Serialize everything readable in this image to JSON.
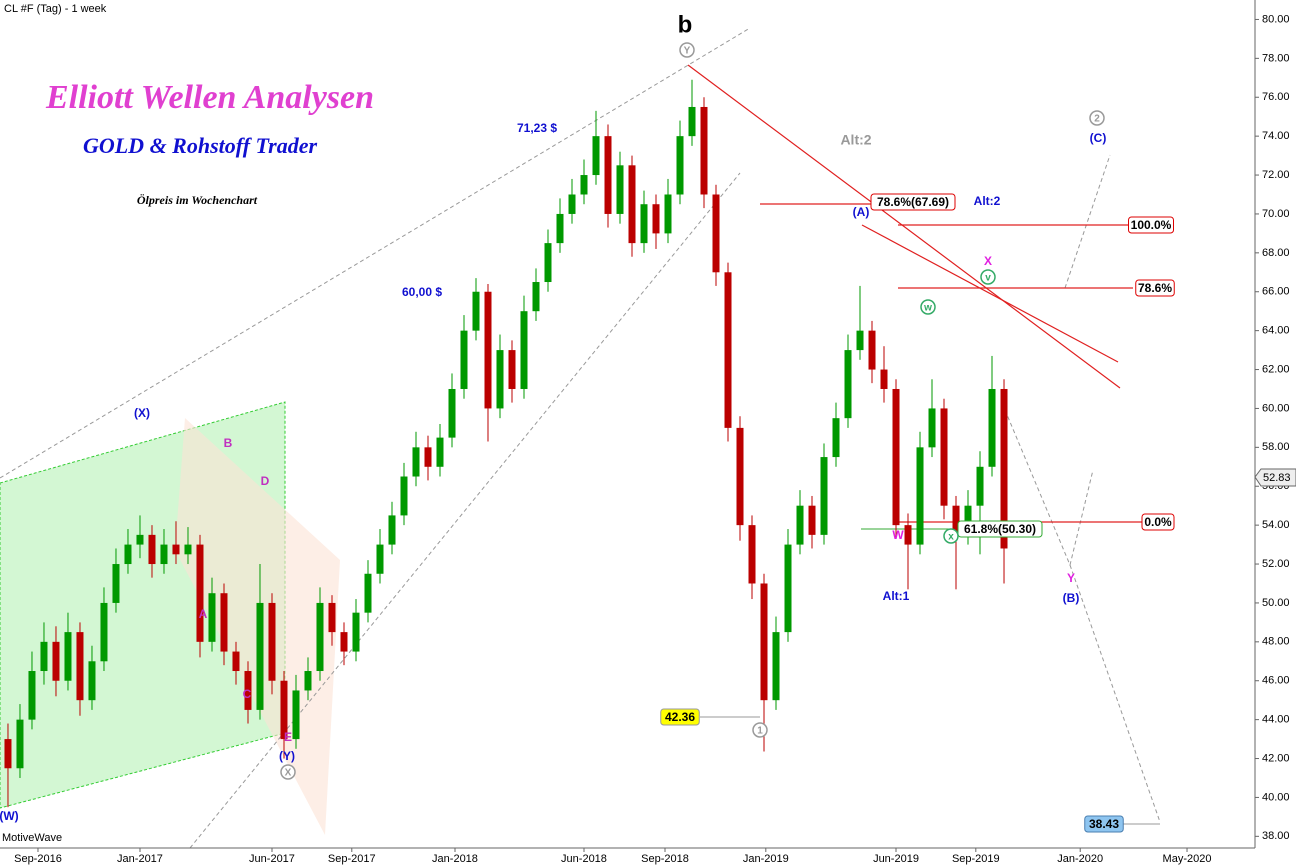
{
  "chart_data": {
    "type": "candlestick",
    "title": "CL #F (Tag) - 1 week",
    "headline": "Elliott Wellen Analysen",
    "subheadline": "GOLD & Rohstoff Trader",
    "caption": "Ölpreis im Wochenchart",
    "watermark": "MotiveWave",
    "last_price_label": "52.83",
    "up_color": "#009900",
    "down_color": "#bb0000",
    "xlim": [
      -6.33,
      202.83
    ],
    "xticks": [
      {
        "value": 0,
        "label": "Sep-2016"
      },
      {
        "value": 17,
        "label": "Jan-2017"
      },
      {
        "value": 39,
        "label": "Jun-2017"
      },
      {
        "value": 52.3,
        "label": "Sep-2017"
      },
      {
        "value": 69.5,
        "label": "Jan-2018"
      },
      {
        "value": 91,
        "label": "Jun-2018"
      },
      {
        "value": 104.5,
        "label": "Sep-2018"
      },
      {
        "value": 121.3,
        "label": "Jan-2019"
      },
      {
        "value": 143,
        "label": "Jun-2019"
      },
      {
        "value": 156.3,
        "label": "Sep-2019"
      },
      {
        "value": 173.7,
        "label": "Jan-2020"
      },
      {
        "value": 191.5,
        "label": "May-2020"
      }
    ],
    "ylim": [
      37.4,
      81.0
    ],
    "yticks": [
      {
        "value": 38,
        "label": "38.00"
      },
      {
        "value": 40,
        "label": "40.00"
      },
      {
        "value": 42,
        "label": "42.00"
      },
      {
        "value": 44,
        "label": "44.00"
      },
      {
        "value": 46,
        "label": "46.00"
      },
      {
        "value": 48,
        "label": "48.00"
      },
      {
        "value": 50,
        "label": "50.00"
      },
      {
        "value": 52,
        "label": "52.00"
      },
      {
        "value": 54,
        "label": "54.00"
      },
      {
        "value": 56,
        "label": "56.00"
      },
      {
        "value": 58,
        "label": "58.00"
      },
      {
        "value": 60,
        "label": "60.00"
      },
      {
        "value": 62,
        "label": "62.00"
      },
      {
        "value": 64,
        "label": "64.00"
      },
      {
        "value": 66,
        "label": "66.00"
      },
      {
        "value": 68,
        "label": "68.00"
      },
      {
        "value": 70,
        "label": "70.00"
      },
      {
        "value": 72,
        "label": "72.00"
      },
      {
        "value": 74,
        "label": "74.00"
      },
      {
        "value": 76,
        "label": "76.00"
      },
      {
        "value": 78,
        "label": "78.00"
      },
      {
        "value": 80,
        "label": "80.00"
      }
    ],
    "x": [
      -5,
      -3,
      -1,
      1,
      3,
      5,
      7,
      9,
      11,
      13,
      15,
      17,
      19,
      21,
      23,
      25,
      27,
      29,
      31,
      33,
      35,
      37,
      39,
      41,
      43,
      45,
      47,
      49,
      51,
      53,
      55,
      57,
      59,
      61,
      63,
      65,
      67,
      69,
      71,
      73,
      75,
      77,
      79,
      81,
      83,
      85,
      87,
      89,
      91,
      93,
      95,
      97,
      99,
      101,
      103,
      105,
      107,
      109,
      111,
      113,
      115,
      117,
      119,
      121,
      123,
      125,
      127,
      129,
      131,
      133,
      135,
      137,
      139,
      141,
      143,
      145,
      147,
      149,
      151,
      153,
      155,
      157,
      159,
      161
    ],
    "ohlc": [
      [
        43,
        43.8,
        39.5,
        41.5
      ],
      [
        41.5,
        44.8,
        41,
        44
      ],
      [
        44,
        47.5,
        43.5,
        46.5
      ],
      [
        46.5,
        49,
        45.8,
        48
      ],
      [
        48,
        48.8,
        45.2,
        46
      ],
      [
        46,
        49.5,
        45.5,
        48.5
      ],
      [
        48.5,
        49,
        44.2,
        45
      ],
      [
        45,
        47.8,
        44.5,
        47
      ],
      [
        47,
        50.8,
        46.5,
        50
      ],
      [
        50,
        52.8,
        49.5,
        52
      ],
      [
        52,
        53.8,
        51.5,
        53
      ],
      [
        53,
        54.5,
        52.3,
        53.5
      ],
      [
        53.5,
        54,
        51.3,
        52
      ],
      [
        52,
        53.8,
        51.5,
        53
      ],
      [
        53,
        54.2,
        52,
        52.5
      ],
      [
        52.5,
        53.9,
        52,
        53
      ],
      [
        53,
        53.5,
        47.2,
        48
      ],
      [
        48,
        51.3,
        47.5,
        50.5
      ],
      [
        50.5,
        51,
        46.8,
        47.5
      ],
      [
        47.5,
        48,
        45.8,
        46.5
      ],
      [
        46.5,
        47,
        43.8,
        44.5
      ],
      [
        44.5,
        52,
        44,
        50
      ],
      [
        50,
        50.5,
        45.3,
        46
      ],
      [
        46,
        46.5,
        42,
        43
      ],
      [
        43,
        46.3,
        42.5,
        45.5
      ],
      [
        45.5,
        47.2,
        45,
        46.5
      ],
      [
        46.5,
        50.8,
        46,
        50
      ],
      [
        50,
        50.4,
        47.8,
        48.5
      ],
      [
        48.5,
        49,
        46.8,
        47.5
      ],
      [
        47.5,
        50.2,
        47,
        49.5
      ],
      [
        49.5,
        52.2,
        49,
        51.5
      ],
      [
        51.5,
        53.8,
        51,
        53
      ],
      [
        53,
        55.2,
        52.5,
        54.5
      ],
      [
        54.5,
        57.2,
        54,
        56.5
      ],
      [
        56.5,
        58.8,
        56,
        58
      ],
      [
        58,
        58.6,
        56.3,
        57
      ],
      [
        57,
        59.2,
        56.5,
        58.5
      ],
      [
        58.5,
        61.8,
        58,
        61
      ],
      [
        61,
        64.8,
        60.5,
        64
      ],
      [
        64,
        66.7,
        63.5,
        66
      ],
      [
        66,
        66.4,
        58.3,
        60
      ],
      [
        60,
        63.8,
        59.5,
        63
      ],
      [
        63,
        63.5,
        60.3,
        61
      ],
      [
        61,
        65.8,
        60.5,
        65
      ],
      [
        65,
        67.2,
        64.5,
        66.5
      ],
      [
        66.5,
        69.2,
        66,
        68.5
      ],
      [
        68.5,
        70.8,
        68,
        70
      ],
      [
        70,
        71.8,
        69.5,
        71
      ],
      [
        71,
        72.8,
        70.5,
        72
      ],
      [
        72,
        75.3,
        71.5,
        74
      ],
      [
        74,
        74.6,
        69.3,
        70
      ],
      [
        70,
        73.2,
        69.5,
        72.5
      ],
      [
        72.5,
        73,
        67.8,
        68.5
      ],
      [
        68.5,
        71.2,
        68,
        70.5
      ],
      [
        70.5,
        71,
        68.2,
        69
      ],
      [
        69,
        71.8,
        68.5,
        71
      ],
      [
        71,
        74.8,
        70.5,
        74
      ],
      [
        74,
        76.9,
        73.5,
        75.5
      ],
      [
        75.5,
        76,
        70.3,
        71
      ],
      [
        71,
        71.5,
        66.3,
        67
      ],
      [
        67,
        67.5,
        58.3,
        59
      ],
      [
        59,
        59.6,
        53.2,
        54
      ],
      [
        54,
        54.5,
        50.2,
        51
      ],
      [
        51,
        51.5,
        42.36,
        45
      ],
      [
        45,
        49.3,
        44.5,
        48.5
      ],
      [
        48.5,
        53.8,
        48,
        53
      ],
      [
        53,
        55.8,
        52.5,
        55
      ],
      [
        55,
        55.5,
        52.8,
        53.5
      ],
      [
        53.5,
        58.2,
        53,
        57.5
      ],
      [
        57.5,
        60.3,
        57,
        59.5
      ],
      [
        59.5,
        63.8,
        59,
        63
      ],
      [
        63,
        66.3,
        62.5,
        64
      ],
      [
        64,
        64.5,
        61.3,
        62
      ],
      [
        62,
        63.2,
        60.3,
        61
      ],
      [
        61,
        61.5,
        53.3,
        54
      ],
      [
        54,
        54.6,
        50.7,
        53
      ],
      [
        53,
        58.8,
        52.5,
        58
      ],
      [
        58,
        61.5,
        57.5,
        60
      ],
      [
        60,
        60.5,
        54.3,
        55
      ],
      [
        55,
        55.5,
        50.7,
        53.5
      ],
      [
        53.5,
        55.8,
        53,
        55
      ],
      [
        55,
        57.8,
        52.5,
        57
      ],
      [
        57,
        62.7,
        56.5,
        61
      ],
      [
        61,
        61.5,
        51,
        52.8
      ]
    ],
    "annotations": [
      "b",
      "Y",
      "71,23 $",
      "60,00 $",
      "Alt:2",
      "78.6%(67.69)",
      "(A)",
      "Alt:2",
      "100.0%",
      "X",
      "v",
      "78.6%",
      "w",
      "0.0%",
      "61.8%(50.30)",
      "W",
      "x",
      "Y",
      "(B)",
      "Alt:1",
      "2",
      "(C)",
      "42.36",
      "1",
      "38.43",
      "(X)",
      "B",
      "D",
      "A",
      "C",
      "E",
      "(Y)",
      "X",
      "(W)"
    ]
  }
}
